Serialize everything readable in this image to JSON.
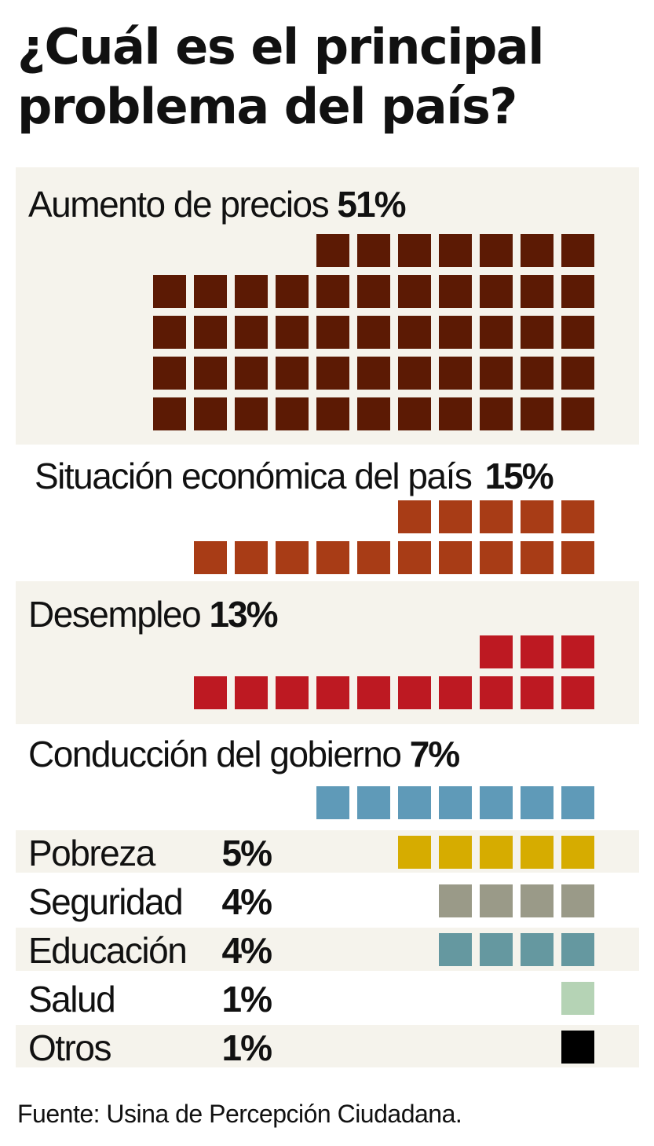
{
  "title": "¿Cuál es el principal problema del país?",
  "source": "Fuente: Usina de Percepción Ciudadana.",
  "chart_data": {
    "type": "waffle",
    "title": "¿Cuál es el principal problema del país?",
    "unit": "%",
    "categories": [
      "Aumento de precios",
      "Situación económica del país",
      "Desempleo",
      "Conducción del gobierno",
      "Pobreza",
      "Seguridad",
      "Educación",
      "Salud",
      "Otros"
    ],
    "values": [
      51,
      15,
      13,
      7,
      5,
      4,
      4,
      1,
      1
    ],
    "labels": [
      "51%",
      "15%",
      "13%",
      "7%",
      "5%",
      "4%",
      "4%",
      "1%",
      "1%"
    ],
    "colors": [
      "#5c1a04",
      "#a83c16",
      "#bd1922",
      "#5f9ab8",
      "#d6ac00",
      "#9a9a88",
      "#6598a0",
      "#b5d3b5",
      "#000000"
    ]
  }
}
